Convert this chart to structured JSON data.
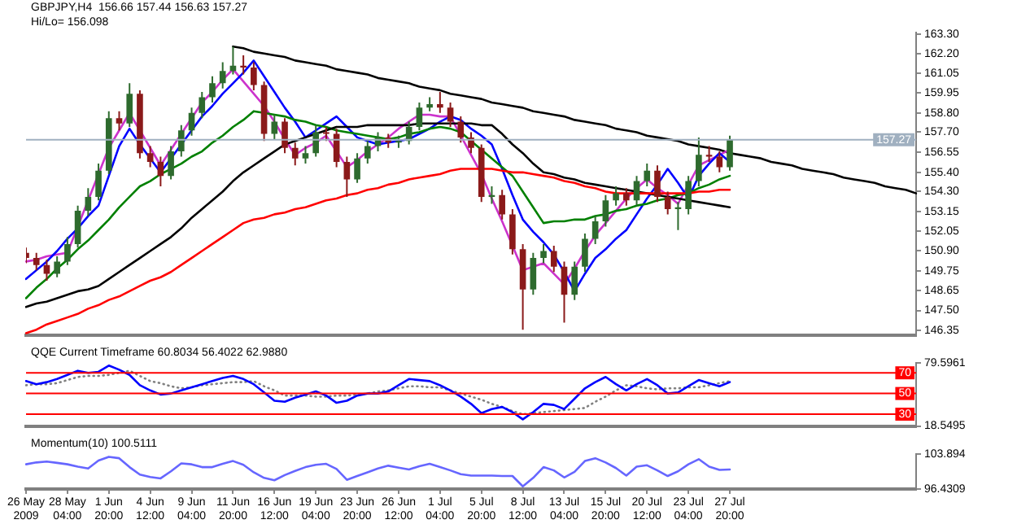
{
  "chart_data": [
    {
      "type": "candlestick",
      "title": "GBPJPY,H4  156.66 157.44 156.63 157.27",
      "annotations": [
        "Hi/Lo= 156.098"
      ],
      "categories": [
        null,
        null,
        null,
        null,
        null,
        null,
        null,
        null,
        null,
        null,
        null,
        null,
        null,
        null,
        null,
        null,
        null,
        null,
        null,
        null,
        null,
        null,
        null,
        null,
        null,
        null,
        null,
        null,
        null,
        null,
        null,
        null,
        null,
        null,
        null,
        null,
        null,
        null,
        null,
        null,
        null,
        null,
        null,
        null,
        null,
        null,
        null,
        null,
        null,
        null,
        null,
        null,
        null,
        null,
        null,
        null,
        null,
        null,
        null,
        null,
        null,
        null,
        null,
        null,
        null,
        null,
        null,
        null,
        null,
        null,
        null,
        null,
        null,
        null,
        null,
        null,
        null,
        null,
        null,
        null,
        null,
        null,
        null,
        null,
        null,
        null,
        null
      ],
      "ohlc": [
        [
          150.8,
          151.1,
          150.2,
          150.5
        ],
        [
          150.5,
          150.8,
          149.8,
          150.1
        ],
        [
          150.1,
          150.4,
          149.2,
          149.6
        ],
        [
          149.6,
          150.6,
          149.4,
          150.3
        ],
        [
          150.3,
          151.7,
          150.1,
          151.3
        ],
        [
          151.3,
          153.5,
          151.1,
          153.2
        ],
        [
          153.2,
          154.5,
          152.9,
          154.0
        ],
        [
          154.0,
          155.9,
          153.8,
          155.5
        ],
        [
          155.5,
          158.9,
          155.3,
          158.5
        ],
        [
          158.5,
          158.9,
          157.8,
          158.2
        ],
        [
          158.2,
          160.5,
          158.0,
          159.9
        ],
        [
          159.9,
          160.1,
          156.2,
          156.5
        ],
        [
          156.5,
          156.9,
          155.7,
          156.0
        ],
        [
          156.0,
          156.3,
          154.6,
          155.2
        ],
        [
          155.2,
          156.9,
          155.0,
          156.6
        ],
        [
          156.6,
          158.1,
          156.3,
          157.8
        ],
        [
          157.8,
          159.1,
          157.5,
          158.8
        ],
        [
          158.8,
          160.0,
          158.5,
          159.7
        ],
        [
          159.7,
          160.9,
          159.4,
          160.5
        ],
        [
          160.5,
          161.7,
          160.2,
          161.2
        ],
        [
          161.2,
          162.6,
          161.0,
          161.5
        ],
        [
          161.5,
          162.1,
          161.0,
          161.4
        ],
        [
          161.4,
          161.7,
          160.1,
          160.4
        ],
        [
          160.4,
          160.6,
          157.2,
          157.6
        ],
        [
          157.6,
          158.7,
          157.3,
          158.3
        ],
        [
          158.3,
          158.5,
          156.5,
          156.8
        ],
        [
          156.8,
          157.1,
          155.8,
          156.2
        ],
        [
          156.2,
          156.9,
          155.9,
          156.5
        ],
        [
          156.5,
          158.1,
          156.3,
          157.7
        ],
        [
          157.7,
          158.0,
          157.2,
          157.6
        ],
        [
          157.6,
          157.9,
          155.7,
          156.0
        ],
        [
          156.0,
          156.3,
          154.0,
          155.0
        ],
        [
          155.0,
          156.5,
          154.8,
          156.2
        ],
        [
          156.2,
          157.2,
          155.9,
          156.9
        ],
        [
          156.9,
          157.7,
          156.6,
          157.4
        ],
        [
          157.4,
          157.6,
          156.8,
          157.1
        ],
        [
          157.1,
          157.5,
          156.8,
          157.2
        ],
        [
          157.2,
          158.3,
          157.0,
          158.0
        ],
        [
          158.0,
          159.4,
          157.8,
          159.1
        ],
        [
          159.1,
          159.7,
          158.9,
          159.3
        ],
        [
          159.3,
          160.0,
          158.8,
          159.1
        ],
        [
          159.1,
          159.4,
          158.0,
          158.3
        ],
        [
          158.3,
          158.6,
          157.1,
          157.4
        ],
        [
          157.4,
          157.7,
          156.5,
          156.8
        ],
        [
          156.8,
          157.0,
          153.7,
          154.0
        ],
        [
          154.0,
          154.6,
          153.6,
          154.1
        ],
        [
          154.1,
          154.4,
          152.7,
          153.0
        ],
        [
          153.0,
          153.3,
          150.7,
          151.0
        ],
        [
          151.0,
          151.3,
          146.4,
          148.7
        ],
        [
          148.7,
          150.8,
          148.4,
          150.5
        ],
        [
          150.5,
          151.3,
          150.2,
          150.9
        ],
        [
          150.9,
          151.2,
          149.7,
          150.0
        ],
        [
          150.0,
          150.3,
          146.8,
          148.4
        ],
        [
          148.4,
          150.3,
          148.1,
          150.0
        ],
        [
          150.0,
          151.9,
          149.7,
          151.6
        ],
        [
          151.6,
          152.9,
          151.3,
          152.6
        ],
        [
          152.6,
          154.1,
          152.3,
          153.8
        ],
        [
          153.8,
          154.6,
          153.5,
          154.2
        ],
        [
          154.2,
          154.5,
          153.5,
          153.8
        ],
        [
          153.8,
          155.2,
          153.5,
          154.9
        ],
        [
          154.9,
          155.9,
          154.6,
          155.5
        ],
        [
          155.5,
          155.8,
          153.7,
          154.0
        ],
        [
          154.0,
          154.3,
          153.0,
          153.3
        ],
        [
          153.3,
          153.7,
          152.1,
          153.4
        ],
        [
          153.3,
          155.2,
          153.0,
          154.9
        ],
        [
          154.9,
          157.4,
          154.6,
          156.4
        ],
        [
          156.4,
          156.9,
          156.0,
          156.3
        ],
        [
          156.3,
          156.6,
          155.4,
          155.7
        ],
        [
          155.7,
          157.5,
          155.5,
          157.27
        ],
        null,
        null,
        null,
        null,
        null,
        null,
        null,
        null,
        null,
        null,
        null,
        null,
        null,
        null,
        null,
        null,
        null,
        null
      ],
      "colors": [
        "#8b1a1a",
        "#8b1a1a",
        "#8b1a1a",
        "#2e6b2e",
        "#2e6b2e",
        "#2e6b2e",
        "#2e6b2e",
        "#2e6b2e",
        "#2e6b2e",
        "#8b1a1a",
        "#2e6b2e",
        "#8b1a1a",
        "#8b1a1a",
        "#8b1a1a",
        "#2e6b2e",
        "#2e6b2e",
        "#2e6b2e",
        "#2e6b2e",
        "#2e6b2e",
        "#2e6b2e",
        "#2e6b2e",
        "#8b1a1a",
        "#8b1a1a",
        "#8b1a1a",
        "#2e6b2e",
        "#8b1a1a",
        "#8b1a1a",
        "#2e6b2e",
        "#2e6b2e",
        "#8b1a1a",
        "#8b1a1a",
        "#8b1a1a",
        "#2e6b2e",
        "#2e6b2e",
        "#2e6b2e",
        "#8b1a1a",
        "#2e6b2e",
        "#2e6b2e",
        "#2e6b2e",
        "#2e6b2e",
        "#8b1a1a",
        "#8b1a1a",
        "#8b1a1a",
        "#8b1a1a",
        "#8b1a1a",
        "#2e6b2e",
        "#8b1a1a",
        "#8b1a1a",
        "#8b1a1a",
        "#2e6b2e",
        "#2e6b2e",
        "#8b1a1a",
        "#8b1a1a",
        "#2e6b2e",
        "#2e6b2e",
        "#2e6b2e",
        "#2e6b2e",
        "#2e6b2e",
        "#8b1a1a",
        "#2e6b2e",
        "#2e6b2e",
        "#8b1a1a",
        "#8b1a1a",
        "#2e6b2e",
        "#2e6b2e",
        "#2e6b2e",
        "#8b1a1a",
        "#8b1a1a",
        "#2e6b2e",
        null,
        null,
        null,
        null,
        null,
        null,
        null,
        null,
        null,
        null,
        null,
        null,
        null,
        null,
        null,
        null,
        null,
        null
      ],
      "series": [
        {
          "type": "line",
          "color": "#ff0000",
          "values": [
            146.2,
            146.4,
            146.7,
            146.9,
            147.1,
            147.3,
            147.6,
            147.8,
            148.1,
            148.3,
            148.6,
            148.9,
            149.2,
            149.4,
            149.7,
            150.1,
            150.5,
            150.9,
            151.3,
            151.7,
            152.1,
            152.5,
            152.7,
            152.8,
            153.0,
            153.1,
            153.3,
            153.4,
            153.6,
            153.8,
            153.9,
            154.1,
            154.2,
            154.4,
            154.5,
            154.7,
            154.8,
            155.0,
            155.1,
            155.2,
            155.3,
            155.5,
            155.6,
            155.6,
            155.6,
            155.6,
            155.5,
            155.4,
            155.4,
            155.3,
            155.2,
            155.1,
            154.9,
            154.8,
            154.6,
            154.5,
            154.3,
            154.2,
            154.2,
            154.2,
            154.2,
            154.2,
            154.2,
            154.2,
            154.2,
            154.3,
            154.3,
            154.4,
            154.4,
            null,
            null,
            null,
            null,
            null,
            null,
            null,
            null,
            null,
            null,
            null,
            null,
            null,
            null,
            null,
            null,
            null,
            null
          ]
        },
        {
          "type": "line",
          "color": "#000000",
          "values": [
            147.7,
            147.9,
            148.0,
            148.2,
            148.4,
            148.6,
            148.7,
            148.9,
            149.3,
            149.7,
            150.1,
            150.5,
            150.9,
            151.3,
            151.7,
            152.2,
            152.8,
            153.3,
            153.8,
            154.3,
            154.9,
            155.4,
            155.8,
            156.2,
            156.6,
            157.0,
            157.2,
            157.4,
            157.6,
            157.8,
            158.0,
            158.0,
            158.0,
            158.1,
            158.1,
            158.1,
            158.1,
            158.1,
            158.2,
            158.2,
            158.2,
            158.2,
            158.2,
            158.2,
            158.1,
            158.1,
            157.6,
            157.0,
            156.5,
            155.9,
            155.4,
            155.3,
            155.1,
            155.0,
            154.8,
            154.7,
            154.6,
            154.5,
            154.4,
            154.3,
            154.2,
            154.1,
            154.0,
            153.9,
            153.8,
            153.7,
            153.6,
            153.5,
            153.4,
            null,
            null,
            null,
            null,
            null,
            null,
            null,
            null,
            null,
            null,
            null,
            null,
            null,
            null,
            null,
            null,
            null,
            null
          ]
        },
        {
          "type": "line",
          "color": "#008000",
          "values": [
            148.2,
            148.8,
            149.3,
            149.9,
            150.4,
            151.0,
            151.5,
            152.1,
            152.7,
            153.4,
            154.0,
            154.6,
            154.9,
            155.3,
            155.6,
            155.9,
            156.3,
            156.6,
            157.1,
            157.5,
            158.0,
            158.4,
            158.9,
            158.8,
            158.7,
            158.6,
            158.4,
            158.3,
            158.1,
            158.0,
            157.8,
            157.7,
            157.6,
            157.5,
            157.4,
            157.3,
            157.4,
            157.6,
            157.7,
            157.9,
            158.0,
            157.9,
            157.7,
            157.2,
            156.7,
            156.2,
            155.7,
            155.2,
            154.3,
            153.4,
            152.5,
            152.6,
            152.6,
            152.7,
            152.7,
            152.9,
            153.0,
            153.2,
            153.3,
            153.5,
            153.6,
            153.8,
            153.9,
            154.1,
            154.2,
            154.5,
            154.7,
            155.0,
            155.2,
            null,
            null,
            null,
            null,
            null,
            null,
            null,
            null,
            null,
            null,
            null,
            null,
            null,
            null,
            null,
            null,
            null,
            null
          ]
        },
        {
          "type": "line",
          "color": "#0000ff",
          "values": [
            149.3,
            149.8,
            150.3,
            150.9,
            151.6,
            152.2,
            152.9,
            153.5,
            155.2,
            156.9,
            157.9,
            157.0,
            156.2,
            155.4,
            156.2,
            157.0,
            157.8,
            158.6,
            159.2,
            159.9,
            160.5,
            161.1,
            161.8,
            160.9,
            160.0,
            159.1,
            158.3,
            157.4,
            157.8,
            158.2,
            158.6,
            158.0,
            157.4,
            157.2,
            157.0,
            157.1,
            157.2,
            157.3,
            157.6,
            157.9,
            158.3,
            158.6,
            158.4,
            157.9,
            157.5,
            157.0,
            155.6,
            154.1,
            152.7,
            152.0,
            151.4,
            150.7,
            149.7,
            148.6,
            149.6,
            150.5,
            151.0,
            151.6,
            152.1,
            153.0,
            153.9,
            154.7,
            155.6,
            154.8,
            153.9,
            155.2,
            155.9,
            156.5,
            156.0,
            null,
            null,
            null,
            null,
            null,
            null,
            null,
            null,
            null,
            null,
            null,
            null,
            null,
            null,
            null,
            null,
            null,
            null
          ]
        },
        {
          "type": "line",
          "color": "#cc33cc",
          "values": [
            150.3,
            150.4,
            150.6,
            150.7,
            150.8,
            152.3,
            153.8,
            155.3,
            156.8,
            157.8,
            158.8,
            157.8,
            156.8,
            155.8,
            156.7,
            157.6,
            158.5,
            159.4,
            160.0,
            160.7,
            161.3,
            160.6,
            159.9,
            159.2,
            158.3,
            157.3,
            156.4,
            156.8,
            157.1,
            157.5,
            156.6,
            155.7,
            156.1,
            156.6,
            157.0,
            157.4,
            157.9,
            158.3,
            158.7,
            158.7,
            158.6,
            158.6,
            157.5,
            156.4,
            155.3,
            153.9,
            152.6,
            151.2,
            149.8,
            150.0,
            150.2,
            149.6,
            149.0,
            149.9,
            150.9,
            151.8,
            152.5,
            153.2,
            153.9,
            154.5,
            155.0,
            154.5,
            154.1,
            153.6,
            154.7,
            155.8,
            156.1,
            156.4,
            156.7,
            null,
            null,
            null,
            null,
            null,
            null,
            null,
            null,
            null,
            null,
            null,
            null,
            null,
            null,
            null,
            null,
            null,
            null
          ]
        },
        {
          "type": "line",
          "color": "#000000",
          "values": [
            null,
            null,
            null,
            null,
            null,
            null,
            null,
            null,
            null,
            null,
            null,
            null,
            null,
            null,
            null,
            null,
            null,
            null,
            null,
            null,
            162.6,
            162.5,
            162.3,
            162.2,
            162.1,
            162.0,
            161.8,
            161.7,
            161.6,
            161.5,
            161.3,
            161.2,
            161.1,
            161.0,
            160.8,
            160.7,
            160.6,
            160.5,
            160.3,
            160.2,
            160.1,
            159.9,
            159.8,
            159.7,
            159.6,
            159.4,
            159.3,
            159.2,
            159.1,
            158.9,
            158.8,
            158.7,
            158.6,
            158.4,
            158.3,
            158.2,
            158.1,
            157.9,
            157.8,
            157.7,
            157.5,
            157.4,
            157.3,
            157.2,
            157.0,
            156.9,
            156.8,
            156.7,
            156.5,
            156.4,
            156.3,
            156.2,
            156.0,
            155.9,
            155.8,
            155.6,
            155.5,
            155.4,
            155.3,
            155.1,
            155.0,
            154.9,
            154.8,
            154.6,
            154.5,
            154.4,
            154.2
          ]
        }
      ],
      "ref_lines": [
        {
          "axis": "y",
          "value": 157.27,
          "label": "157.27",
          "color": "#a0b0c0"
        }
      ],
      "ylim": [
        146.1,
        163.4
      ],
      "yticks": [
        146.35,
        {
          "value": 147.5,
          "label": "147.50"
        },
        148.65,
        149.75,
        {
          "value": 150.9,
          "label": "150.90"
        },
        152.05,
        153.15,
        {
          "value": 154.3,
          "label": "154.30"
        },
        {
          "value": 155.4,
          "label": "155.40"
        },
        156.55,
        {
          "value": 157.7,
          "label": "157.70"
        },
        {
          "value": 158.8,
          "label": "158.80"
        },
        159.95,
        161.05,
        {
          "value": 162.2,
          "label": "162.20"
        },
        {
          "value": 163.3,
          "label": "163.30"
        }
      ],
      "tick_labels": "y",
      "grid": false,
      "legend": false,
      "marker": "none"
    },
    {
      "type": "line",
      "title": "QQE Current Timeframe 60.8034 56.4022 62.9880",
      "categories": [
        null,
        null,
        null,
        null,
        null,
        null,
        null,
        null,
        null,
        null,
        null,
        null,
        null,
        null,
        null,
        null,
        null,
        null,
        null,
        null,
        null,
        null,
        null,
        null,
        null,
        null,
        null,
        null,
        null,
        null,
        null,
        null,
        null,
        null,
        null,
        null,
        null,
        null,
        null,
        null,
        null,
        null,
        null,
        null,
        null,
        null,
        null,
        null,
        null,
        null,
        null,
        null,
        null,
        null,
        null,
        null,
        null,
        null,
        null,
        null,
        null,
        null,
        null,
        null,
        null,
        null,
        null,
        null,
        null,
        null,
        null,
        null,
        null,
        null,
        null,
        null,
        null,
        null,
        null,
        null,
        null,
        null,
        null,
        null,
        null,
        null,
        null
      ],
      "series": [
        {
          "color": "#0000ff",
          "values": [
            62,
            59,
            61,
            64,
            68,
            72,
            70,
            71,
            77,
            73,
            68,
            58,
            53,
            49,
            50,
            53,
            56,
            59,
            62,
            65,
            67,
            64,
            59,
            51,
            43,
            42,
            46,
            49,
            52,
            48,
            41,
            43,
            48,
            50,
            50,
            52,
            58,
            64,
            63,
            62,
            58,
            53,
            47,
            40,
            31,
            35,
            37,
            32,
            25,
            32,
            40,
            39,
            35,
            45,
            55,
            61,
            66,
            59,
            53,
            59,
            64,
            58,
            50,
            51,
            57,
            63,
            60,
            57,
            61,
            null,
            null,
            null,
            null,
            null,
            null,
            null,
            null,
            null,
            null,
            null,
            null,
            null,
            null,
            null,
            null,
            null,
            null
          ]
        },
        {
          "color": "#808080",
          "line_style": "dotted",
          "values": [
            58,
            59,
            59,
            60,
            63,
            66,
            67,
            67,
            68,
            70,
            72,
            67,
            62,
            60,
            57,
            55,
            56,
            58,
            59,
            60,
            61,
            61,
            62,
            57,
            53,
            48,
            48,
            48,
            47,
            47,
            48,
            48,
            49,
            50,
            52,
            53,
            55,
            57,
            57,
            56,
            56,
            53,
            50,
            47,
            44,
            40,
            37,
            33,
            30,
            31,
            32,
            33,
            34,
            35,
            36,
            42,
            47,
            53,
            58,
            57,
            55,
            54,
            55,
            55,
            56,
            56,
            58,
            60,
            62,
            null,
            null,
            null,
            null,
            null,
            null,
            null,
            null,
            null,
            null,
            null,
            null,
            null,
            null,
            null,
            null,
            null,
            null
          ]
        }
      ],
      "ref_lines": [
        {
          "axis": "y",
          "value": 70,
          "label": "70",
          "color": "#ff0000"
        },
        {
          "axis": "y",
          "value": 50,
          "label": "50",
          "color": "#ff0000"
        },
        {
          "axis": "y",
          "value": 30,
          "label": "30",
          "color": "#ff0000"
        }
      ],
      "ylim": [
        18.5495,
        79.5961
      ],
      "yticks": [
        18.5495,
        79.5961
      ],
      "tick_labels": "y",
      "grid": false,
      "legend": false,
      "marker": "none"
    },
    {
      "type": "line",
      "title": "Momentum(10) 100.5111",
      "categories": [
        "26 May 2009",
        null,
        null,
        null,
        "28 May 04:00",
        null,
        null,
        null,
        "1 Jun 20:00",
        null,
        null,
        null,
        "4 Jun 12:00",
        null,
        null,
        null,
        "9 Jun 04:00",
        null,
        null,
        null,
        "11 Jun 20:00",
        null,
        null,
        null,
        "16 Jun 12:00",
        null,
        null,
        null,
        "19 Jun 04:00",
        null,
        null,
        null,
        "23 Jun 20:00",
        null,
        null,
        null,
        "26 Jun 12:00",
        null,
        null,
        null,
        "1 Jul 04:00",
        null,
        null,
        null,
        "5 Jul 20:00",
        null,
        null,
        null,
        "8 Jul 12:00",
        null,
        null,
        null,
        "13 Jul 04:00",
        null,
        null,
        null,
        "15 Jul 20:00",
        null,
        null,
        null,
        "20 Jul 12:00",
        null,
        null,
        null,
        "23 Jul 04:00",
        null,
        null,
        null,
        "27 Jul 20:00",
        null,
        null,
        null,
        null,
        null,
        null,
        null,
        null,
        null,
        null,
        null,
        null,
        null,
        null,
        null,
        null,
        null,
        null
      ],
      "series": [
        {
          "color": "#6666ff",
          "values": [
            101.7,
            102.1,
            102.3,
            102.0,
            101.7,
            101.2,
            100.8,
            102.5,
            103.3,
            103.0,
            101.1,
            99.5,
            99.0,
            98.7,
            100.2,
            101.9,
            101.7,
            101.1,
            101.1,
            101.8,
            102.4,
            101.6,
            100.0,
            98.8,
            98.3,
            99.4,
            100.3,
            101.1,
            101.6,
            101.8,
            100.7,
            98.4,
            99.2,
            100.0,
            100.8,
            101.4,
            101.0,
            100.6,
            101.3,
            101.8,
            101.1,
            100.4,
            99.6,
            99.3,
            99.3,
            99.3,
            99.2,
            99.2,
            97.0,
            98.8,
            101.1,
            100.4,
            98.9,
            100.1,
            102.4,
            103.0,
            102.1,
            100.9,
            99.3,
            101.2,
            101.5,
            100.4,
            99.2,
            100.2,
            101.7,
            102.8,
            101.2,
            100.5,
            100.6,
            null,
            null,
            null,
            null,
            null,
            null,
            null,
            null,
            null,
            null,
            null,
            null,
            null,
            null,
            null,
            null,
            null,
            null
          ]
        }
      ],
      "ylim": [
        96.4309,
        103.894
      ],
      "yticks": [
        96.4309,
        103.894
      ],
      "grid": false,
      "legend": false,
      "marker": "none"
    }
  ]
}
